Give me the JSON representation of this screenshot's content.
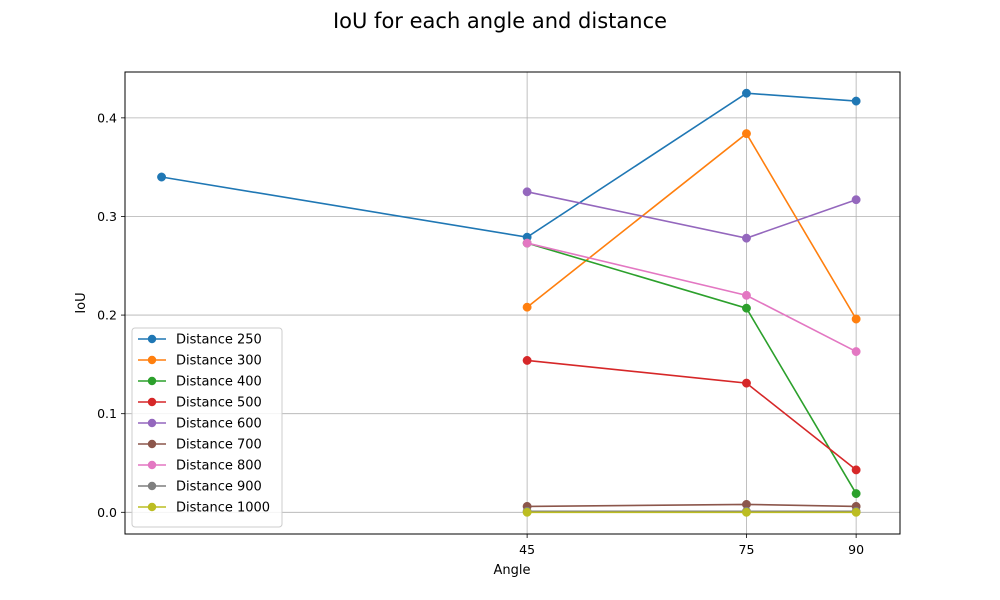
{
  "chart_data": {
    "type": "line",
    "title": "IoU for each angle and distance",
    "xlabel": "Angle",
    "ylabel": "IoU",
    "xlim": [
      -10,
      96
    ],
    "ylim": [
      -0.022,
      0.4465
    ],
    "xticks": [
      45,
      75,
      90
    ],
    "yticks": [
      0.0,
      0.1,
      0.2,
      0.3,
      0.4
    ],
    "ytick_labels": [
      "0.0",
      "0.1",
      "0.2",
      "0.3",
      "0.4"
    ],
    "grid": true,
    "legend_position": "lower-left",
    "marker": "circle",
    "series": [
      {
        "name": "Distance 250",
        "color": "#1f77b4",
        "points": [
          [
            -5,
            0.34
          ],
          [
            45,
            0.279
          ],
          [
            75,
            0.425
          ],
          [
            90,
            0.417
          ]
        ]
      },
      {
        "name": "Distance 300",
        "color": "#ff7f0e",
        "points": [
          [
            45,
            0.208
          ],
          [
            75,
            0.384
          ],
          [
            90,
            0.196
          ]
        ]
      },
      {
        "name": "Distance 400",
        "color": "#2ca02c",
        "points": [
          [
            45,
            0.273
          ],
          [
            75,
            0.207
          ],
          [
            90,
            0.019
          ]
        ]
      },
      {
        "name": "Distance 500",
        "color": "#d62728",
        "points": [
          [
            45,
            0.154
          ],
          [
            75,
            0.131
          ],
          [
            90,
            0.043
          ]
        ]
      },
      {
        "name": "Distance 600",
        "color": "#9467bd",
        "points": [
          [
            45,
            0.325
          ],
          [
            75,
            0.278
          ],
          [
            90,
            0.317
          ]
        ]
      },
      {
        "name": "Distance 700",
        "color": "#8c564b",
        "points": [
          [
            45,
            0.006
          ],
          [
            75,
            0.008
          ],
          [
            90,
            0.006
          ]
        ]
      },
      {
        "name": "Distance 800",
        "color": "#e377c2",
        "points": [
          [
            45,
            0.273
          ],
          [
            75,
            0.22
          ],
          [
            90,
            0.163
          ]
        ]
      },
      {
        "name": "Distance 900",
        "color": "#7f7f7f",
        "points": [
          [
            45,
            0.001
          ],
          [
            75,
            0.001
          ],
          [
            90,
            0.001
          ]
        ]
      },
      {
        "name": "Distance 1000",
        "color": "#bcbd22",
        "points": [
          [
            45,
            0.0
          ],
          [
            75,
            0.0
          ],
          [
            90,
            0.0
          ]
        ]
      }
    ]
  }
}
